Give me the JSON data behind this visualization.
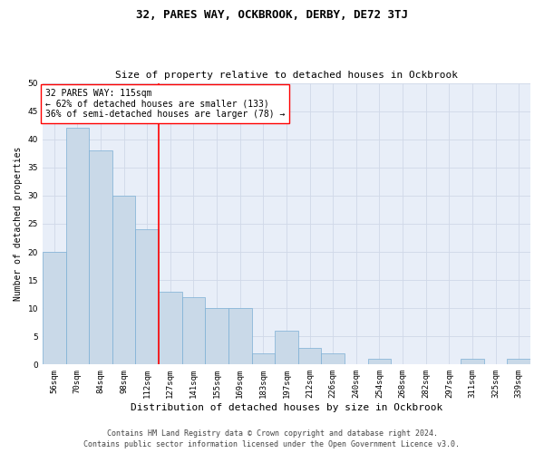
{
  "title": "32, PARES WAY, OCKBROOK, DERBY, DE72 3TJ",
  "subtitle": "Size of property relative to detached houses in Ockbrook",
  "xlabel": "Distribution of detached houses by size in Ockbrook",
  "ylabel": "Number of detached properties",
  "categories": [
    "56sqm",
    "70sqm",
    "84sqm",
    "98sqm",
    "112sqm",
    "127sqm",
    "141sqm",
    "155sqm",
    "169sqm",
    "183sqm",
    "197sqm",
    "212sqm",
    "226sqm",
    "240sqm",
    "254sqm",
    "268sqm",
    "282sqm",
    "297sqm",
    "311sqm",
    "325sqm",
    "339sqm"
  ],
  "values": [
    20,
    42,
    38,
    30,
    24,
    13,
    12,
    10,
    10,
    2,
    6,
    3,
    2,
    0,
    1,
    0,
    0,
    0,
    1,
    0,
    1
  ],
  "bar_color": "#c9d9e8",
  "bar_edge_color": "#7bafd4",
  "red_line_index": 4,
  "annotation_text": "32 PARES WAY: 115sqm\n← 62% of detached houses are smaller (133)\n36% of semi-detached houses are larger (78) →",
  "annotation_box_color": "white",
  "annotation_box_edge_color": "red",
  "ylim": [
    0,
    50
  ],
  "yticks": [
    0,
    5,
    10,
    15,
    20,
    25,
    30,
    35,
    40,
    45,
    50
  ],
  "grid_color": "#d0d8e8",
  "background_color": "#e8eef8",
  "footer_line1": "Contains HM Land Registry data © Crown copyright and database right 2024.",
  "footer_line2": "Contains public sector information licensed under the Open Government Licence v3.0.",
  "title_fontsize": 9,
  "subtitle_fontsize": 8,
  "annotation_fontsize": 7,
  "footer_fontsize": 6,
  "ylabel_fontsize": 7,
  "xlabel_fontsize": 8,
  "tick_fontsize": 6.5
}
